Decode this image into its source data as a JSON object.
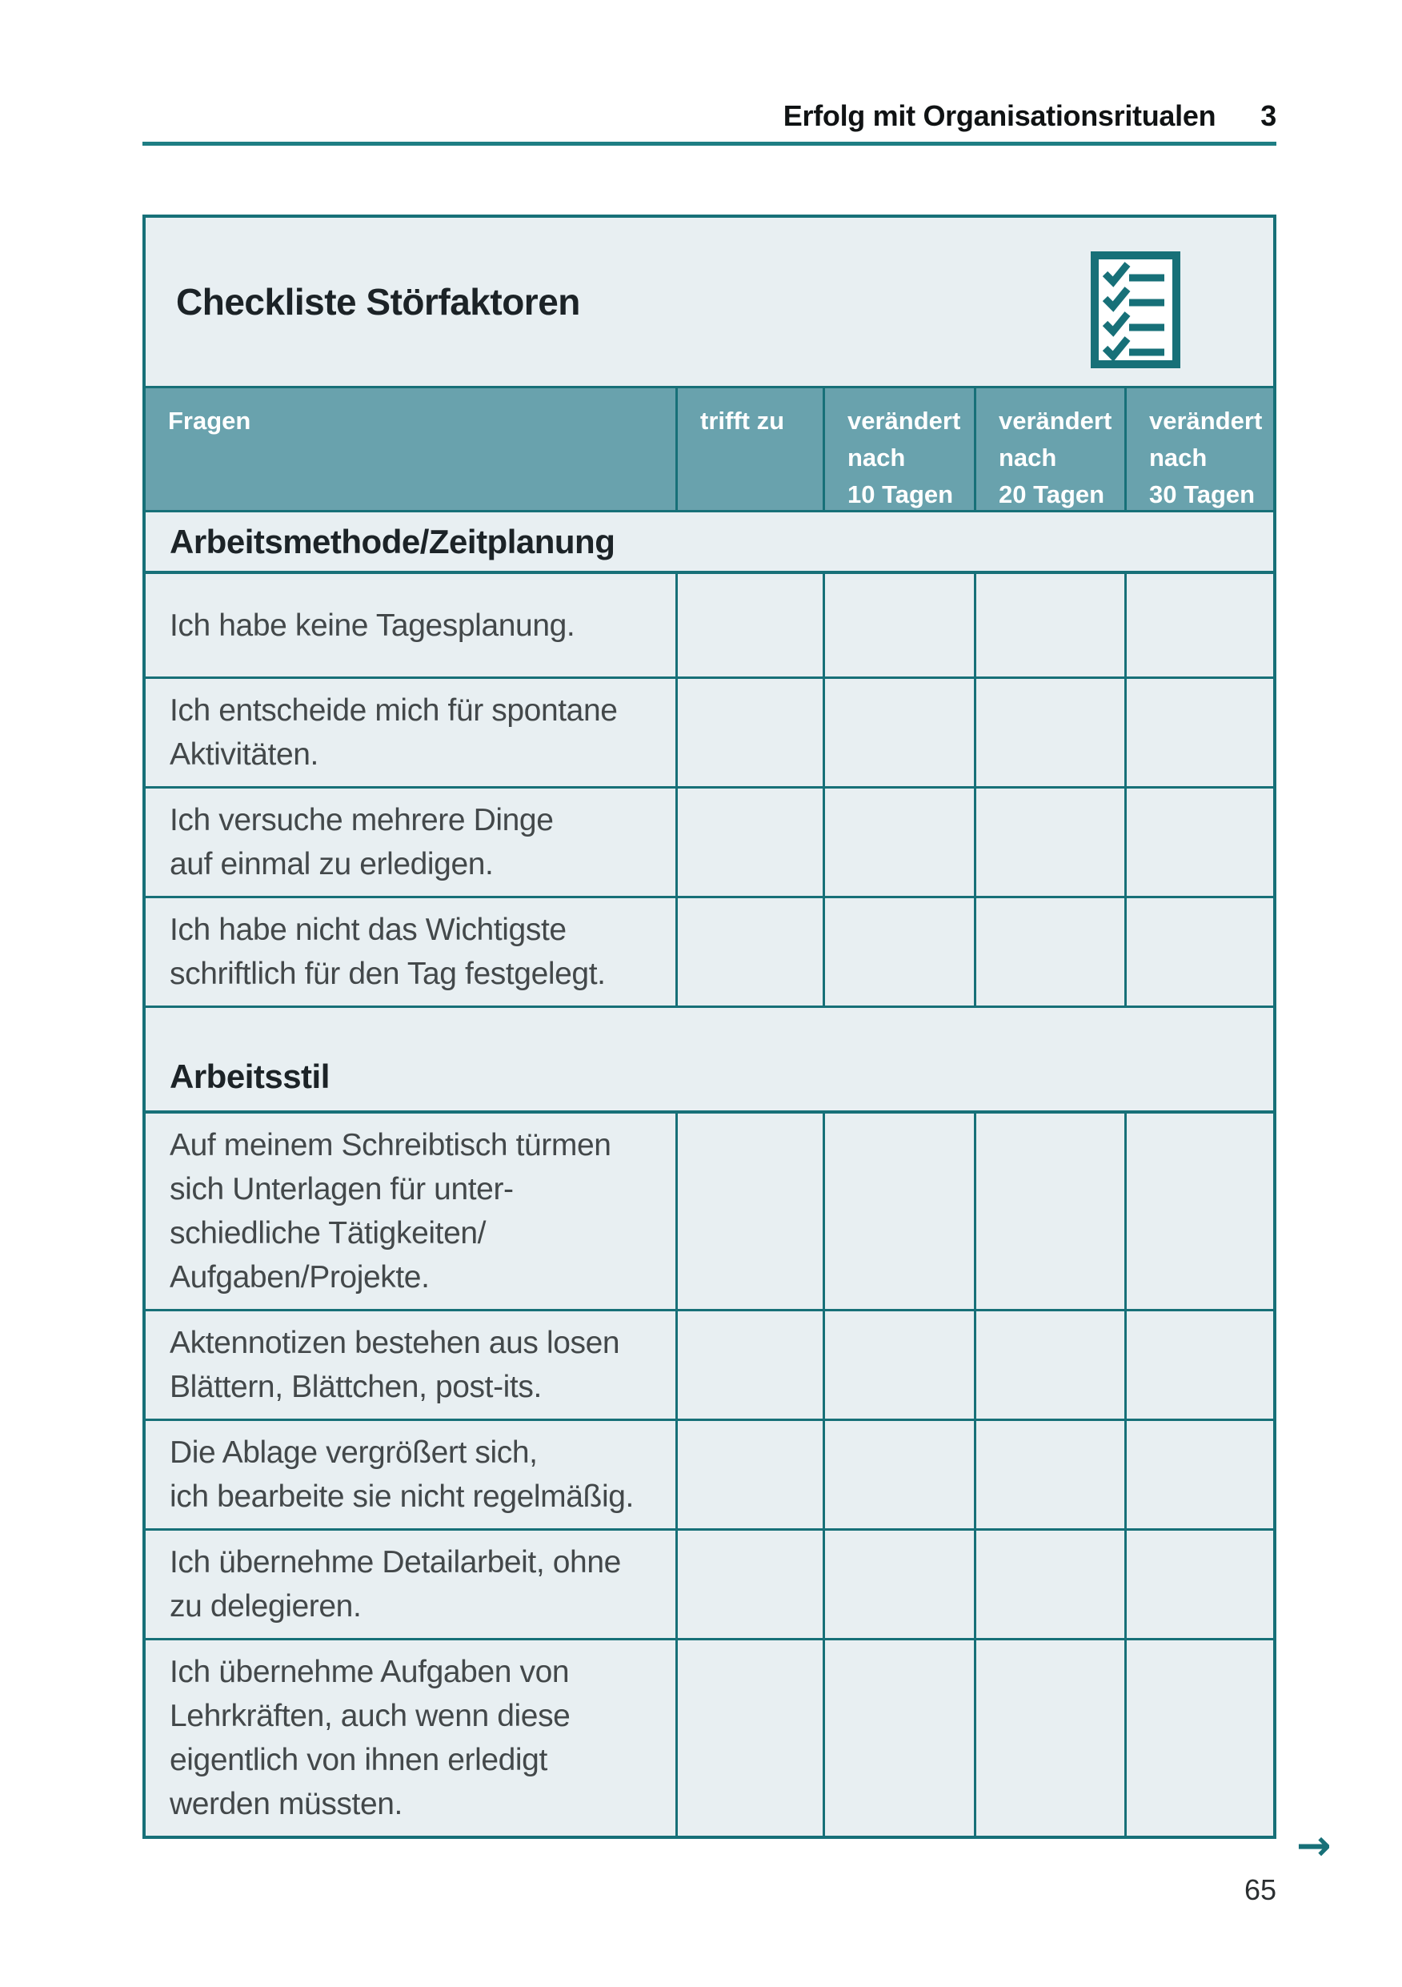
{
  "page": {
    "running_head": {
      "title": "Erfolg mit Organisationsritualen",
      "chapter": "3"
    },
    "page_number": "65",
    "continuation_arrow": "→"
  },
  "checklist": {
    "title": "Checkliste Störfaktoren",
    "icon": "checklist-icon",
    "header": {
      "columns": [
        {
          "id": "fragen",
          "lines": [
            "Fragen"
          ]
        },
        {
          "id": "trifft-zu",
          "lines": [
            "trifft zu"
          ]
        },
        {
          "id": "veraendert-10",
          "lines": [
            "verändert",
            "nach",
            "10 Tagen"
          ]
        },
        {
          "id": "veraendert-20",
          "lines": [
            "verändert",
            "nach",
            "20 Tagen"
          ]
        },
        {
          "id": "veraendert-30",
          "lines": [
            "verändert",
            "nach",
            "30 Tagen"
          ]
        }
      ]
    },
    "sections": [
      {
        "heading": "Arbeitsmethode/Zeitplanung",
        "rows": [
          {
            "lines": [
              "Ich habe keine Tagesplanung."
            ]
          },
          {
            "lines": [
              "Ich entscheide mich für spontane",
              "Aktivitäten."
            ]
          },
          {
            "lines": [
              "Ich versuche mehrere Dinge",
              "auf einmal zu erledigen."
            ]
          },
          {
            "lines": [
              "Ich habe nicht das Wichtigste",
              "schriftlich für den Tag festgelegt."
            ]
          }
        ]
      },
      {
        "heading": "Arbeitsstil",
        "rows": [
          {
            "lines": [
              "Auf meinem Schreibtisch türmen",
              "sich Unterlagen für unter-",
              "schiedliche Tätigkeiten/",
              "Aufgaben/Projekte."
            ]
          },
          {
            "lines": [
              "Aktennotizen bestehen aus losen",
              "Blättern, Blättchen, post-its."
            ]
          },
          {
            "lines": [
              "Die Ablage vergrößert sich,",
              "ich bearbeite sie nicht regelmäßig."
            ]
          },
          {
            "lines": [
              "Ich übernehme Detailarbeit, ohne",
              "zu delegieren."
            ]
          },
          {
            "lines": [
              "Ich übernehme Aufgaben von",
              "Lehrkräften, auch wenn diese",
              "eigentlich von ihnen erledigt",
              "werden müssten."
            ]
          }
        ]
      }
    ]
  },
  "colors": {
    "accent_teal": "#177078",
    "rule_teal": "#1e7e84",
    "table_header_bg": "#69a2ad",
    "panel_bg": "#e8eff2"
  }
}
